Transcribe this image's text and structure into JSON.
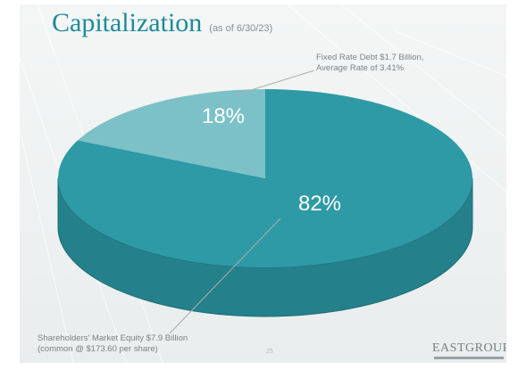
{
  "title": "Capitalization",
  "subtitle": "(as of 6/30/23)",
  "chart_data": {
    "type": "pie",
    "slices": [
      {
        "label_line1": "Fixed Rate Debt $1.7 Billion,",
        "label_line2": "Average Rate of 3.41%",
        "percent_text": "18%",
        "value": 18
      },
      {
        "label_line1": "Shareholders' Market Equity $7.9 Billion",
        "label_line2": "(common @ $173.60 per share)",
        "percent_text": "82%",
        "value": 82
      }
    ],
    "colors": {
      "equity": "#2e9aa5",
      "equity_side": "#24808a",
      "debt": "#7cc1c8"
    }
  },
  "page_number": "25",
  "logo_text": "EASTGROUP"
}
